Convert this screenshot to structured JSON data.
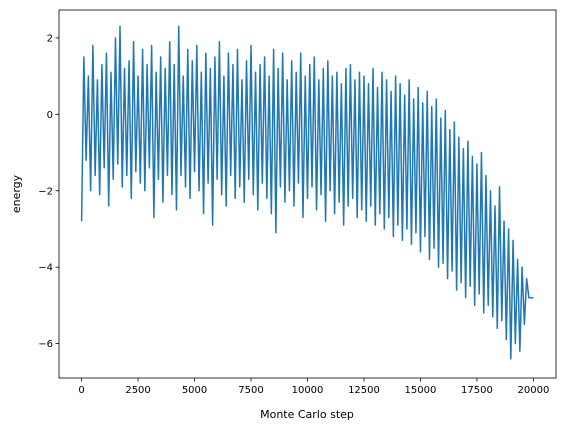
{
  "chart_data": {
    "type": "line",
    "x_label": "Monte Carlo step",
    "y_label": "energy",
    "xlim": [
      -1000,
      21000
    ],
    "ylim": [
      -6.9,
      2.73
    ],
    "xticks": [
      0,
      2500,
      5000,
      7500,
      10000,
      12500,
      15000,
      17500,
      20000
    ],
    "yticks": [
      {
        "value": -6,
        "label": "−6"
      },
      {
        "value": -4,
        "label": "−4"
      },
      {
        "value": -2,
        "label": "−2"
      },
      0,
      2
    ],
    "x": [
      0,
      100,
      200,
      300,
      400,
      500,
      600,
      700,
      800,
      900,
      1000,
      1100,
      1200,
      1300,
      1400,
      1500,
      1600,
      1700,
      1800,
      1900,
      2000,
      2100,
      2200,
      2300,
      2400,
      2500,
      2600,
      2700,
      2800,
      2900,
      3000,
      3100,
      3200,
      3300,
      3400,
      3500,
      3600,
      3700,
      3800,
      3900,
      4000,
      4100,
      4200,
      4300,
      4400,
      4500,
      4600,
      4700,
      4800,
      4900,
      5000,
      5100,
      5200,
      5300,
      5400,
      5500,
      5600,
      5700,
      5800,
      5900,
      6000,
      6100,
      6200,
      6300,
      6400,
      6500,
      6600,
      6700,
      6800,
      6900,
      7000,
      7100,
      7200,
      7300,
      7400,
      7500,
      7600,
      7700,
      7800,
      7900,
      8000,
      8100,
      8200,
      8300,
      8400,
      8500,
      8600,
      8700,
      8800,
      8900,
      9000,
      9100,
      9200,
      9300,
      9400,
      9500,
      9600,
      9700,
      9800,
      9900,
      10000,
      10100,
      10200,
      10300,
      10400,
      10500,
      10600,
      10700,
      10800,
      10900,
      11000,
      11100,
      11200,
      11300,
      11400,
      11500,
      11600,
      11700,
      11800,
      11900,
      12000,
      12100,
      12200,
      12300,
      12400,
      12500,
      12600,
      12700,
      12800,
      12900,
      13000,
      13100,
      13200,
      13300,
      13400,
      13500,
      13600,
      13700,
      13800,
      13900,
      14000,
      14100,
      14200,
      14300,
      14400,
      14500,
      14600,
      14700,
      14800,
      14900,
      15000,
      15100,
      15200,
      15300,
      15400,
      15500,
      15600,
      15700,
      15800,
      15900,
      16000,
      16100,
      16200,
      16300,
      16400,
      16500,
      16600,
      16700,
      16800,
      16900,
      17000,
      17100,
      17200,
      17300,
      17400,
      17500,
      17600,
      17700,
      17800,
      17900,
      18000,
      18100,
      18200,
      18300,
      18400,
      18500,
      18600,
      18700,
      18800,
      18900,
      19000,
      19100,
      19200,
      19300,
      19400,
      19500,
      19600,
      19700,
      19800,
      19900,
      20000
    ],
    "series": [
      {
        "color": "#1f77b4",
        "values": [
          -2.8,
          1.5,
          -1.2,
          1.0,
          -2.0,
          1.8,
          -1.6,
          0.9,
          -2.1,
          1.3,
          -1.4,
          1.6,
          -2.4,
          1.1,
          -1.7,
          2.0,
          -1.3,
          2.3,
          -1.9,
          1.2,
          -1.6,
          1.4,
          -2.2,
          1.9,
          -1.5,
          1.0,
          -1.8,
          1.7,
          -2.0,
          1.3,
          -1.4,
          1.8,
          -2.7,
          1.1,
          -1.7,
          1.5,
          -2.3,
          1.2,
          -1.6,
          1.9,
          -2.1,
          1.3,
          -2.5,
          2.3,
          -1.6,
          1.0,
          -1.9,
          1.7,
          -2.2,
          1.4,
          -1.5,
          1.8,
          -2.0,
          1.1,
          -2.6,
          1.6,
          -1.8,
          1.2,
          -2.9,
          1.5,
          -1.7,
          1.9,
          -2.1,
          1.0,
          -2.4,
          1.6,
          -1.6,
          1.3,
          -2.2,
          1.7,
          -1.9,
          0.9,
          -2.3,
          1.4,
          -1.7,
          1.8,
          -2.1,
          1.1,
          -2.5,
          1.3,
          -1.8,
          1.5,
          -2.2,
          1.0,
          -2.6,
          1.7,
          -3.1,
          1.2,
          -1.9,
          1.6,
          -2.3,
          0.9,
          -2.0,
          1.4,
          -2.4,
          1.1,
          -1.8,
          1.6,
          -2.7,
          1.0,
          -2.2,
          1.3,
          -1.9,
          1.5,
          -2.5,
          0.9,
          -2.1,
          1.2,
          -2.8,
          1.4,
          -2.0,
          1.0,
          -2.6,
          1.1,
          -2.3,
          0.8,
          -2.9,
          1.2,
          -2.4,
          1.3,
          -2.2,
          0.9,
          -2.7,
          1.1,
          -2.5,
          1.0,
          -2.8,
          0.8,
          -2.4,
          1.2,
          -2.9,
          0.7,
          -2.6,
          1.1,
          -3.0,
          0.9,
          -2.7,
          0.6,
          -3.2,
          1.0,
          -2.9,
          0.8,
          -3.3,
          0.5,
          -3.0,
          0.9,
          -3.4,
          0.4,
          -3.1,
          0.7,
          -3.6,
          0.3,
          -3.2,
          0.6,
          -3.8,
          0.2,
          -3.5,
          0.4,
          -4.0,
          -0.1,
          -3.9,
          0.1,
          -4.3,
          -0.4,
          -4.1,
          -0.2,
          -4.6,
          -0.6,
          -4.4,
          -0.9,
          -4.8,
          -0.7,
          -4.5,
          -1.1,
          -5.0,
          -1.3,
          -4.7,
          -1.0,
          -5.2,
          -1.6,
          -5.0,
          -2.0,
          -5.3,
          -2.4,
          -5.6,
          -1.9,
          -5.4,
          -2.8,
          -5.9,
          -3.0,
          -6.4,
          -3.3,
          -6.0,
          -3.8,
          -6.2,
          -4.0,
          -5.5,
          -4.3,
          -4.8,
          -4.8,
          -4.8
        ]
      }
    ]
  }
}
